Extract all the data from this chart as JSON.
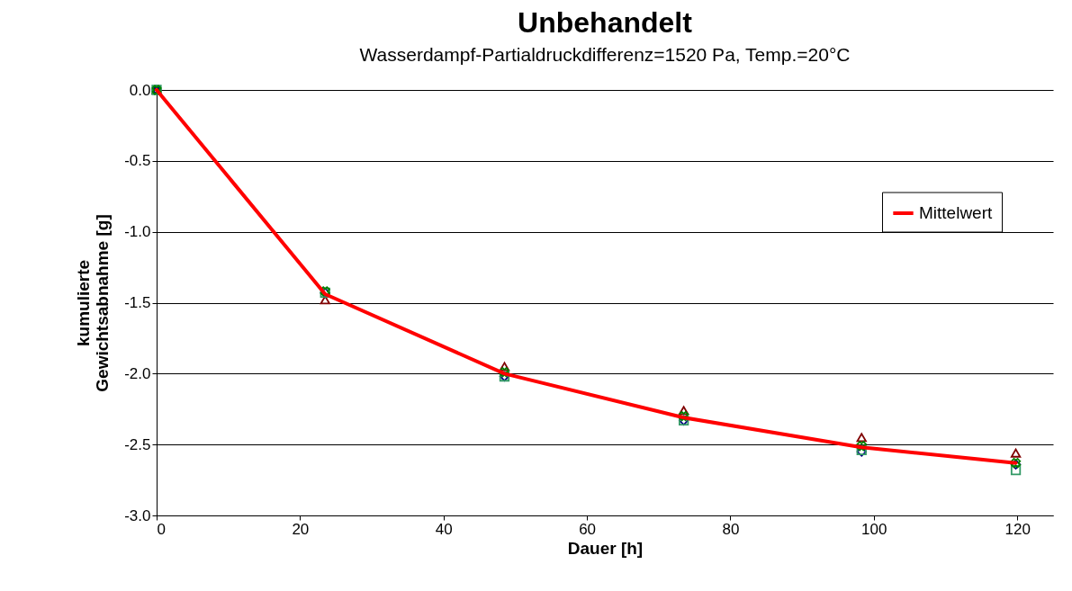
{
  "chart_data": {
    "type": "line",
    "title": "Unbehandelt",
    "subtitle": "Wasserdampf-Partialdruckdifferenz=1520 Pa, Temp.=20°C",
    "xlabel": "Dauer [h]",
    "ylabel": "kumulierte\nGewichtsabnahme [g]",
    "x": [
      0,
      23.5,
      48.5,
      73.5,
      98.3,
      119.8
    ],
    "series": [
      {
        "type": "scatter",
        "marker": "triangle",
        "color": "#800000",
        "values": [
          0,
          -1.48,
          -1.95,
          -2.26,
          -2.45,
          -2.56
        ]
      },
      {
        "type": "scatter",
        "marker": "diamond",
        "color": "#000080",
        "values": [
          0,
          -1.43,
          -2.02,
          -2.33,
          -2.55,
          -2.64
        ]
      },
      {
        "type": "scatter",
        "marker": "square",
        "color": "#339966",
        "values": [
          0,
          -1.43,
          -2.02,
          -2.33,
          -2.54,
          -2.68
        ]
      },
      {
        "type": "scatter",
        "marker": "cross",
        "color": "#008000",
        "values": [
          0,
          -1.42,
          -1.99,
          -2.3,
          -2.51,
          -2.63
        ]
      },
      {
        "name": "Mittelwert",
        "color": "#ff0000",
        "marker": "none",
        "values": [
          0,
          -1.44,
          -2.0,
          -2.31,
          -2.52,
          -2.63
        ]
      }
    ],
    "xlim": [
      0,
      125
    ],
    "xticks": [
      0,
      20,
      40,
      60,
      80,
      100,
      120
    ],
    "ylim": [
      -3,
      0
    ],
    "yticks": [
      {
        "value": 0,
        "label": "0.0"
      },
      -0.5,
      {
        "value": -1,
        "label": "-1.0"
      },
      -1.5,
      {
        "value": -2,
        "label": "-2.0"
      },
      -2.5,
      {
        "value": -3,
        "label": "-3.0"
      }
    ],
    "grid": "y",
    "legend": "right"
  }
}
